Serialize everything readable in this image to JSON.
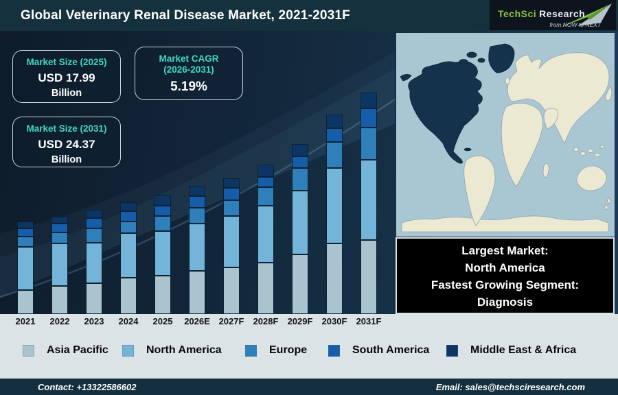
{
  "header": {
    "title": "Global Veterinary Renal Disease Market, 2021-2031F",
    "logo": {
      "brand_primary": "TechSci",
      "brand_secondary": "Research",
      "tagline": "from NOW to NEXT"
    }
  },
  "stat_cards": {
    "size_2025": {
      "label": "Market Size (2025)",
      "value": "USD 17.99",
      "unit": "Billion"
    },
    "cagr": {
      "label_line1": "Market CAGR",
      "label_line2": "(2026-2031)",
      "value": "5.19%"
    },
    "size_2031": {
      "label": "Market Size (2031)",
      "value": "USD 24.37",
      "unit": "Billion"
    }
  },
  "map": {
    "highlighted_region": "North America"
  },
  "highlight_box": {
    "lines": [
      "Largest Market:",
      "North America",
      "Fastest Growing Segment:",
      "Diagnosis"
    ]
  },
  "footer": {
    "contact": "Contact: +13322586602",
    "email": "Email: sales@techsciresearch.com"
  },
  "colors": {
    "header_bg": "#15313d",
    "chart_bg_dark": "#0e1c2b",
    "chart_bg_light": "#1a3a57",
    "accent_teal": "#41d8c3",
    "card_border": "#deecf2",
    "light_panel_bg": "#dce3e7",
    "footer_bg": "#14303e",
    "map_ocean": "#a9c6d3",
    "map_land": "#ece9d3",
    "map_highlight": "#14324c",
    "logo_green": "#8dc63f",
    "highlight_box_bg": "#000000"
  },
  "chart_data": {
    "type": "bar",
    "stacked": true,
    "title": "Global Veterinary Renal Disease Market, 2021-2031F",
    "categories": [
      "2021",
      "2022",
      "2023",
      "2024",
      "2025",
      "2026E",
      "2027F",
      "2028F",
      "2029F",
      "2030F",
      "2031F"
    ],
    "series": [
      {
        "name": "Asia Pacific",
        "color": "#a9c4cf",
        "values": [
          35,
          41,
          45,
          53,
          56,
          63,
          68,
          75,
          87,
          103,
          108
        ]
      },
      {
        "name": "North America",
        "color": "#74b4d8",
        "values": [
          63,
          62,
          59,
          65,
          65,
          69,
          75,
          83,
          93,
          110,
          117
        ]
      },
      {
        "name": "Europe",
        "color": "#2f7fba",
        "values": [
          15,
          16,
          21,
          17,
          22,
          23,
          23,
          27,
          33,
          38,
          47
        ]
      },
      {
        "name": "South America",
        "color": "#165da9",
        "values": [
          12,
          13,
          15,
          15,
          15,
          17,
          18,
          15,
          17,
          20,
          28
        ]
      },
      {
        "name": "Middle East & Africa",
        "color": "#0c3563",
        "values": [
          10,
          10,
          12,
          13,
          15,
          15,
          14,
          18,
          18,
          20,
          23
        ]
      }
    ],
    "value_units": "relative bar-segment heights in screen pixels (no numeric axis shown in figure)",
    "totals_reference": {
      "2025": "USD 17.99 Billion",
      "2031": "USD 24.37 Billion",
      "cagr_2026_2031": "5.19%"
    },
    "xlabel": "",
    "ylabel": "",
    "grid": false,
    "legend_position": "bottom"
  }
}
